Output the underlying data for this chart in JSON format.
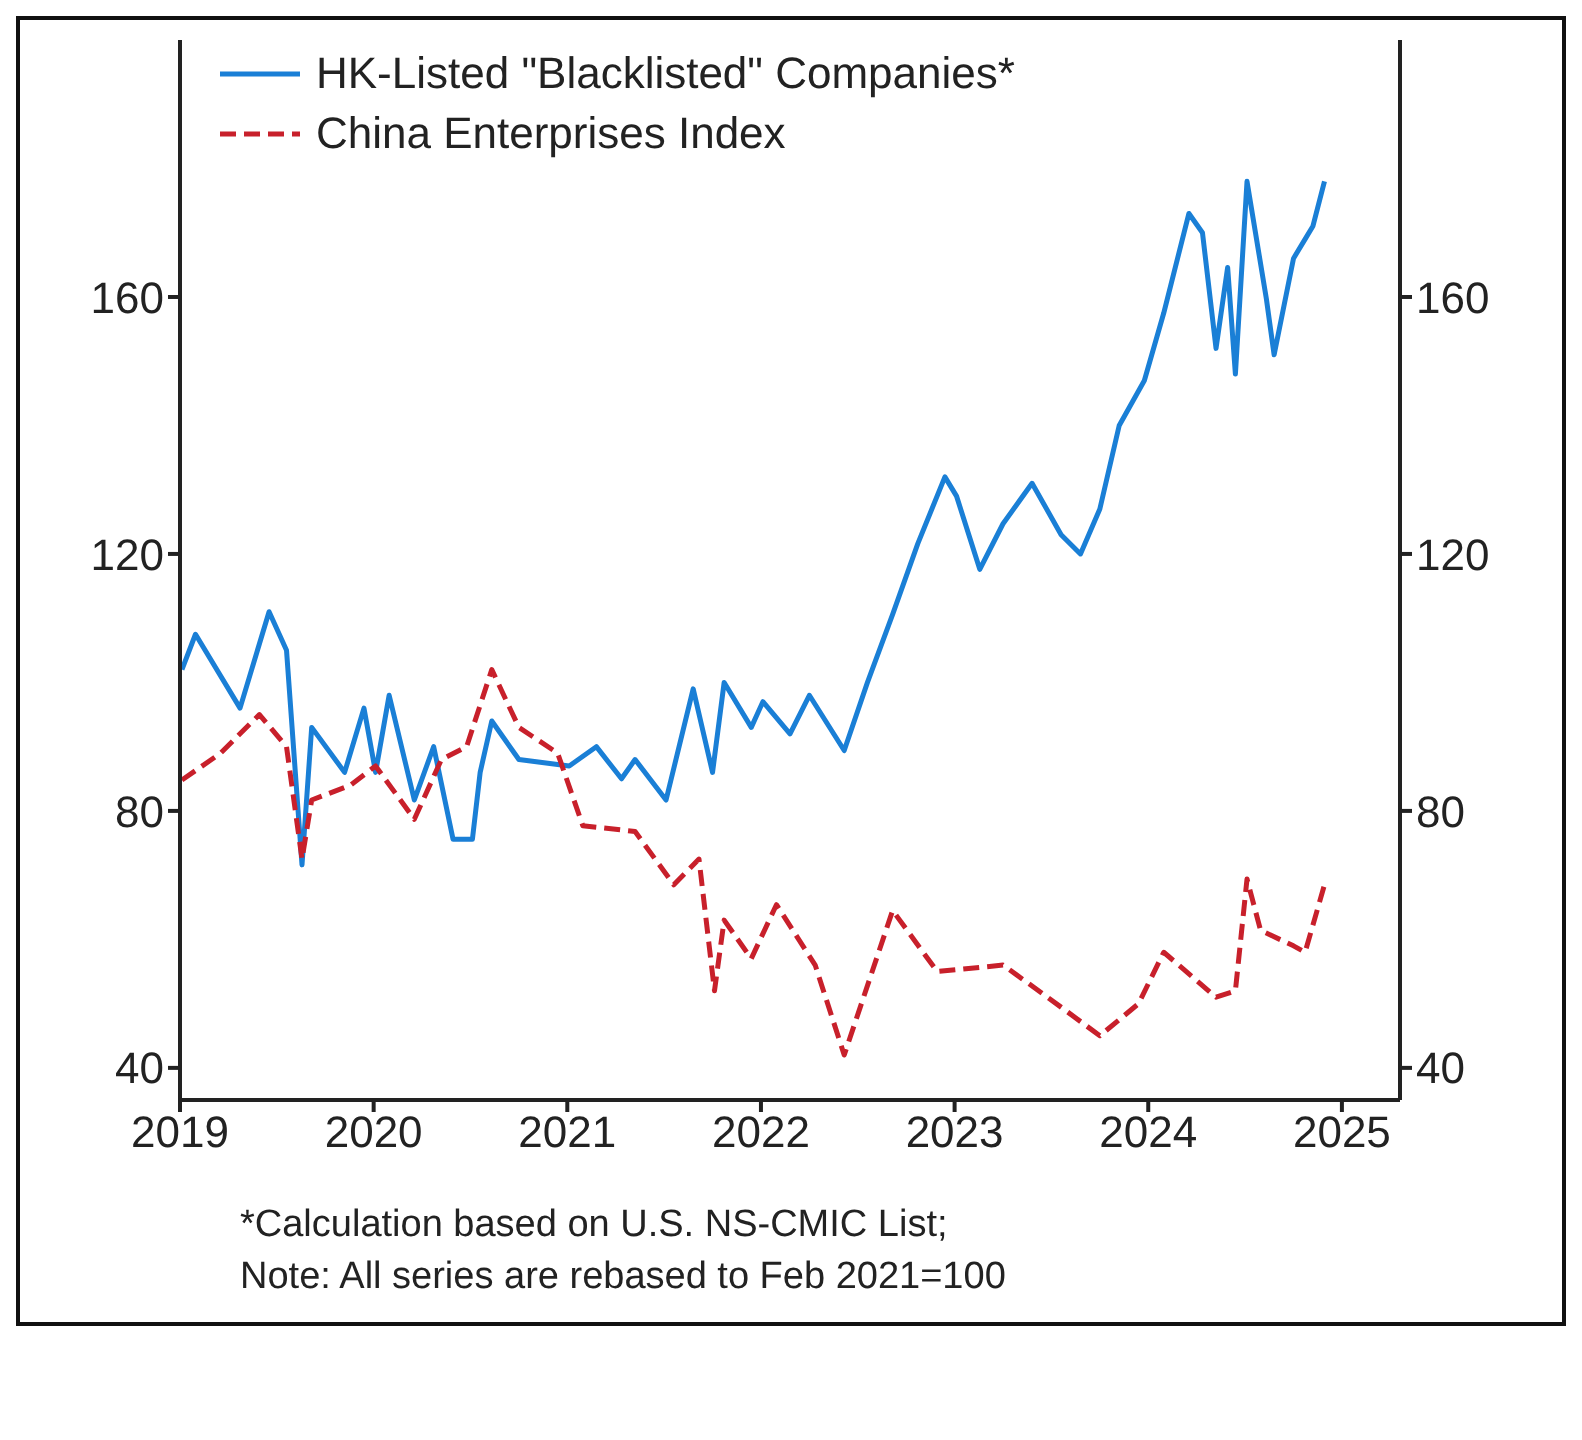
{
  "chart_data": {
    "type": "line",
    "xlim": [
      2019,
      2025.3
    ],
    "xticks": [
      2019,
      2020,
      2021,
      2022,
      2023,
      2024,
      2025
    ],
    "ylim": [
      35,
      200
    ],
    "yticks": [
      40,
      80,
      120,
      160
    ],
    "y2lim": [
      35,
      200
    ],
    "y2ticks": [
      40,
      80,
      120,
      160
    ],
    "legend": "top left",
    "series": [
      {
        "name": "HK-Listed \"Blacklisted\" Companies*",
        "color": "#1a7fd6",
        "line_style": "solid",
        "x": [
          2019.01,
          2019.08,
          2019.31,
          2019.46,
          2019.55,
          2019.63,
          2019.68,
          2019.85,
          2019.95,
          2020.01,
          2020.08,
          2020.21,
          2020.31,
          2020.41,
          2020.51,
          2020.55,
          2020.61,
          2020.75,
          2021.01,
          2021.15,
          2021.28,
          2021.35,
          2021.51,
          2021.65,
          2021.75,
          2021.81,
          2021.95,
          2022.01,
          2022.15,
          2022.25,
          2022.43,
          2022.55,
          2022.68,
          2022.81,
          2022.95,
          2023.01,
          2023.13,
          2023.25,
          2023.4,
          2023.55,
          2023.65,
          2023.75,
          2023.85,
          2023.98,
          2024.08,
          2024.21,
          2024.28,
          2024.35,
          2024.41,
          2024.45,
          2024.51,
          2024.61,
          2024.65,
          2024.75,
          2024.81,
          2024.85,
          2024.91
        ],
        "values": [
          102,
          107.5,
          96,
          111,
          105,
          71.6,
          93,
          86,
          96,
          86,
          98,
          81.7,
          90,
          75.6,
          75.6,
          86,
          94,
          88,
          87,
          90,
          85,
          88,
          81.7,
          99,
          86,
          100,
          93,
          97,
          92,
          98,
          89.4,
          100,
          110.6,
          121.6,
          132,
          129,
          117.6,
          124.7,
          131,
          123,
          120,
          127,
          140,
          147,
          157.5,
          173,
          170,
          152,
          164.6,
          148,
          178,
          159.7,
          151,
          166,
          169,
          171,
          178
        ]
      },
      {
        "name": "China Enterprises Index",
        "color": "#c8202b",
        "line_style": "dashed",
        "x": [
          2019.01,
          2019.21,
          2019.41,
          2019.55,
          2019.63,
          2019.68,
          2019.88,
          2020.01,
          2020.21,
          2020.35,
          2020.48,
          2020.61,
          2020.75,
          2020.95,
          2021.08,
          2021.35,
          2021.55,
          2021.68,
          2021.76,
          2021.81,
          2021.95,
          2022.08,
          2022.28,
          2022.43,
          2022.68,
          2022.91,
          2023.25,
          2023.48,
          2023.75,
          2023.95,
          2024.08,
          2024.35,
          2024.45,
          2024.51,
          2024.58,
          2024.75,
          2024.81,
          2024.91
        ],
        "values": [
          84.8,
          89,
          95,
          90,
          72.5,
          81.7,
          84,
          87,
          78.7,
          88,
          90,
          102,
          93,
          89,
          77.7,
          76.8,
          68.5,
          72.5,
          52,
          63,
          57,
          65.4,
          56,
          42,
          64.5,
          55,
          56,
          51,
          45,
          50,
          58,
          51,
          52,
          69.4,
          61.4,
          59,
          58,
          68.5
        ]
      }
    ],
    "annotations": [
      "*Calculation based on U.S. NS-CMIC List;",
      "Note: All series are rebased to Feb 2021=100"
    ]
  }
}
